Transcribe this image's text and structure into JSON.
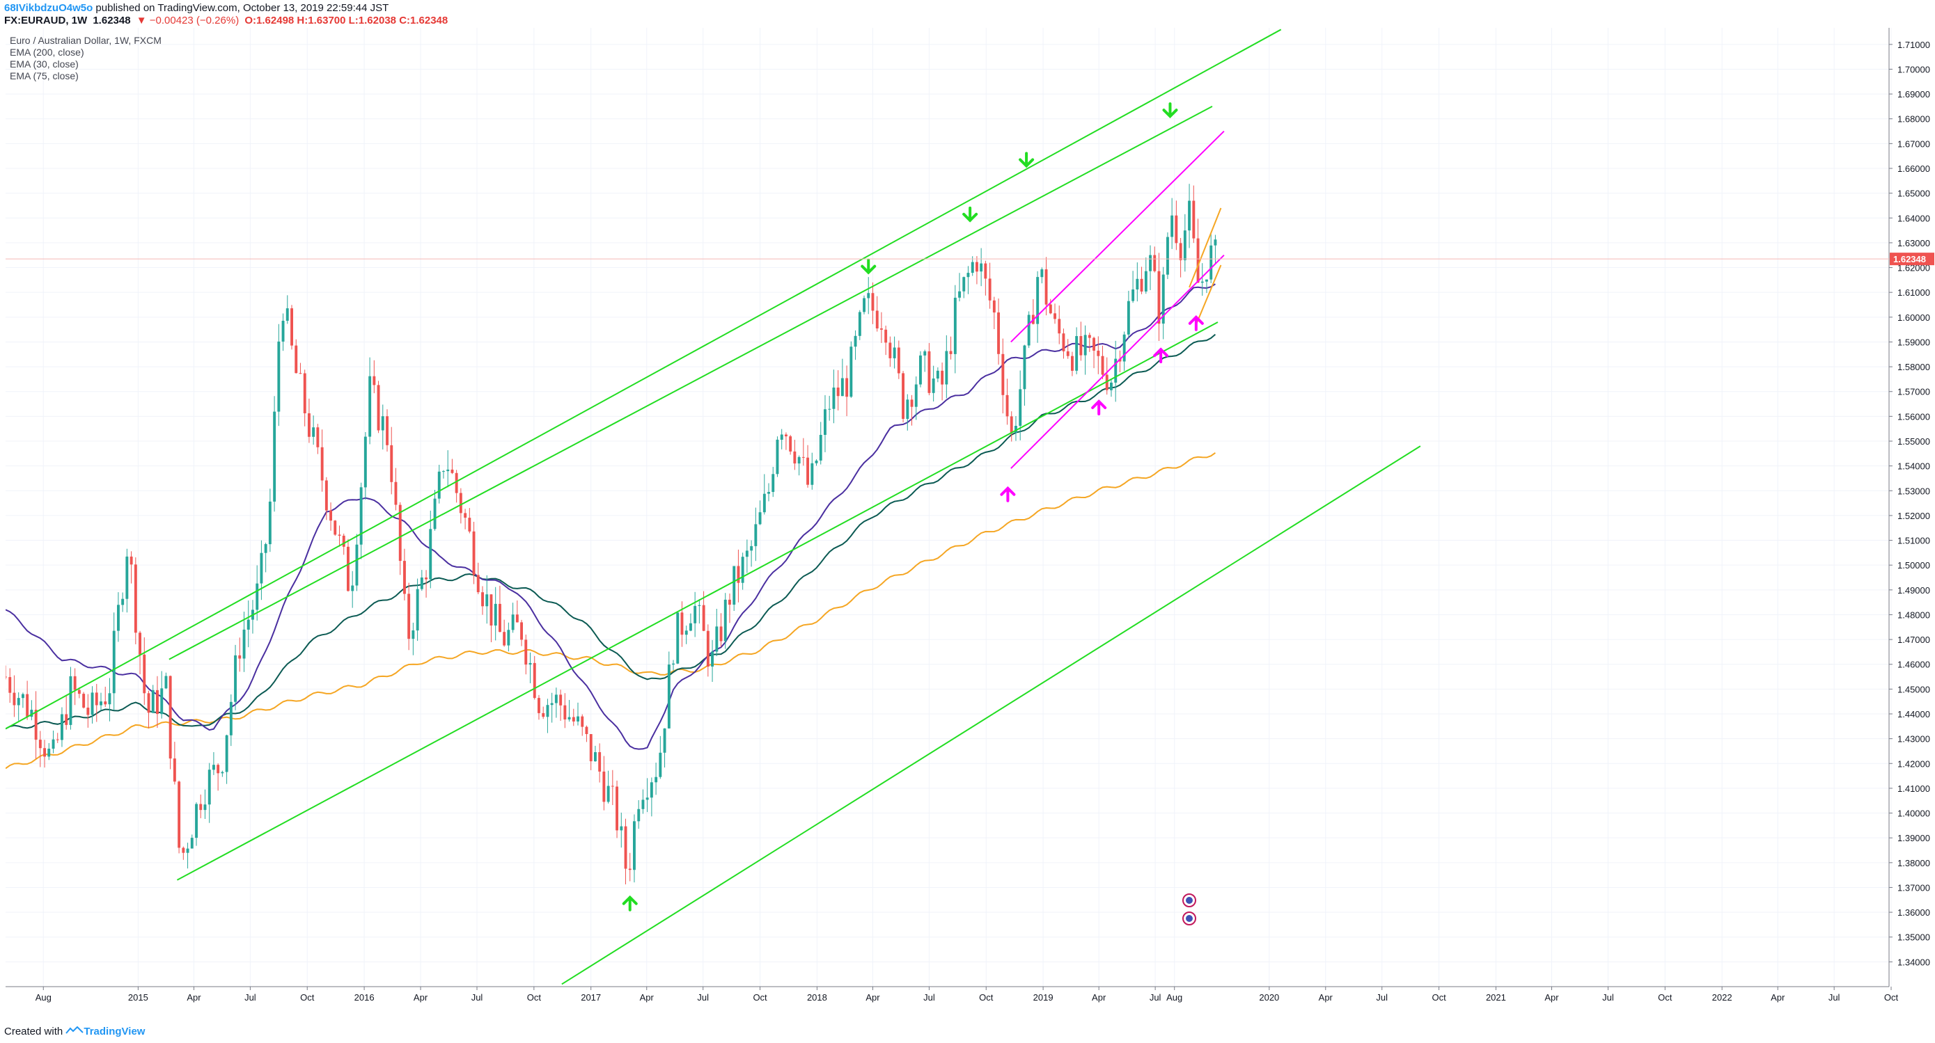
{
  "header": {
    "user": "68IVikbdzuO4w5o",
    "published_text": " published on TradingView.com, October 13, 2019 22:59:44 JST",
    "symbol": "FX:EURAUD, 1W",
    "last": "1.62348",
    "change": "▼ −0.00423 (−0.26%)",
    "ohlc": "O:1.62498 H:1.63700 L:1.62038 C:1.62348"
  },
  "legend": {
    "title": "Euro / Australian Dollar, 1W, FXCM",
    "ema200": "EMA (200, close)",
    "ema30": "EMA (30, close)",
    "ema75": "EMA (75, close)"
  },
  "footer": {
    "created": "Created with ",
    "brand": "TradingView"
  },
  "colors": {
    "up": "#26a69a",
    "down": "#ef5350",
    "green_line": "#22dd22",
    "magenta": "#ff00ff",
    "ema200": "#f5a623",
    "ema30": "#4a2fa0",
    "ema75": "#0b5a53",
    "price_tag": "#ef5350"
  },
  "chart_data": {
    "type": "candlestick",
    "title": "Euro / Australian Dollar, 1W, FXCM",
    "ylim": [
      1.33,
      1.715
    ],
    "y_ticks": [
      "1.34000",
      "1.35000",
      "1.36000",
      "1.37000",
      "1.38000",
      "1.39000",
      "1.40000",
      "1.41000",
      "1.42000",
      "1.43000",
      "1.44000",
      "1.45000",
      "1.46000",
      "1.47000",
      "1.48000",
      "1.49000",
      "1.50000",
      "1.51000",
      "1.52000",
      "1.53000",
      "1.54000",
      "1.55000",
      "1.56000",
      "1.57000",
      "1.58000",
      "1.59000",
      "1.60000",
      "1.61000",
      "1.62000",
      "1.63000",
      "1.64000",
      "1.65000",
      "1.66000",
      "1.67000",
      "1.68000",
      "1.69000",
      "1.70000",
      "1.71000"
    ],
    "x_ticks": [
      "Aug",
      "2015",
      "Apr",
      "Jul",
      "Oct",
      "2016",
      "Apr",
      "Jul",
      "Oct",
      "2017",
      "Apr",
      "Jul",
      "Oct",
      "2018",
      "Apr",
      "Jul",
      "Oct",
      "2019",
      "Apr",
      "Jul",
      "Aug",
      "2020",
      "Apr",
      "Jul",
      "Oct",
      "2021",
      "Apr",
      "Jul",
      "Oct",
      "2022",
      "Apr",
      "Jul",
      "Oct"
    ],
    "x_tick_dates": [
      "2014-08-01",
      "2015-01-01",
      "2015-04-01",
      "2015-07-01",
      "2015-10-01",
      "2016-01-01",
      "2016-04-01",
      "2016-07-01",
      "2016-10-01",
      "2017-01-01",
      "2017-04-01",
      "2017-07-01",
      "2017-10-01",
      "2018-01-01",
      "2018-04-01",
      "2018-07-01",
      "2018-10-01",
      "2019-01-01",
      "2019-04-01",
      "2019-07-01",
      "2019-08-01",
      "2020-01-01",
      "2020-04-01",
      "2020-07-01",
      "2020-10-01",
      "2021-01-01",
      "2021-04-01",
      "2021-07-01",
      "2021-10-01",
      "2022-01-01",
      "2022-04-01",
      "2022-07-01",
      "2022-10-01"
    ],
    "last_price": "1.62348",
    "price_path": [
      [
        "2014-06-01",
        1.455
      ],
      [
        "2014-07-15",
        1.44
      ],
      [
        "2014-08-15",
        1.42
      ],
      [
        "2014-09-15",
        1.45
      ],
      [
        "2014-10-15",
        1.44
      ],
      [
        "2014-11-15",
        1.45
      ],
      [
        "2014-12-15",
        1.51
      ],
      [
        "2015-01-15",
        1.44
      ],
      [
        "2015-02-15",
        1.45
      ],
      [
        "2015-03-10",
        1.38
      ],
      [
        "2015-04-15",
        1.41
      ],
      [
        "2015-05-15",
        1.42
      ],
      [
        "2015-06-15",
        1.47
      ],
      [
        "2015-07-15",
        1.49
      ],
      [
        "2015-08-01",
        1.52
      ],
      [
        "2015-08-20",
        1.61
      ],
      [
        "2015-09-10",
        1.58
      ],
      [
        "2015-10-10",
        1.55
      ],
      [
        "2015-11-10",
        1.52
      ],
      [
        "2015-12-10",
        1.49
      ],
      [
        "2016-01-10",
        1.57
      ],
      [
        "2016-02-10",
        1.55
      ],
      [
        "2016-03-10",
        1.47
      ],
      [
        "2016-04-10",
        1.5
      ],
      [
        "2016-05-10",
        1.545
      ],
      [
        "2016-06-10",
        1.52
      ],
      [
        "2016-07-10",
        1.49
      ],
      [
        "2016-08-10",
        1.47
      ],
      [
        "2016-09-10",
        1.475
      ],
      [
        "2016-10-10",
        1.445
      ],
      [
        "2016-11-10",
        1.445
      ],
      [
        "2016-12-10",
        1.435
      ],
      [
        "2017-01-10",
        1.42
      ],
      [
        "2017-02-10",
        1.4
      ],
      [
        "2017-03-01",
        1.375
      ],
      [
        "2017-03-20",
        1.41
      ],
      [
        "2017-04-20",
        1.42
      ],
      [
        "2017-05-15",
        1.47
      ],
      [
        "2017-06-15",
        1.485
      ],
      [
        "2017-07-15",
        1.46
      ],
      [
        "2017-08-15",
        1.49
      ],
      [
        "2017-09-15",
        1.505
      ],
      [
        "2017-10-15",
        1.53
      ],
      [
        "2017-11-01",
        1.56
      ],
      [
        "2017-12-01",
        1.545
      ],
      [
        "2017-12-20",
        1.53
      ],
      [
        "2018-01-20",
        1.565
      ],
      [
        "2018-02-20",
        1.575
      ],
      [
        "2018-03-20",
        1.605
      ],
      [
        "2018-04-20",
        1.6
      ],
      [
        "2018-05-20",
        1.565
      ],
      [
        "2018-06-20",
        1.58
      ],
      [
        "2018-07-20",
        1.57
      ],
      [
        "2018-08-15",
        1.605
      ],
      [
        "2018-09-15",
        1.625
      ],
      [
        "2018-10-15",
        1.6
      ],
      [
        "2018-11-10",
        1.55
      ],
      [
        "2018-12-01",
        1.58
      ],
      [
        "2018-12-25",
        1.62
      ],
      [
        "2019-01-20",
        1.595
      ],
      [
        "2019-02-20",
        1.585
      ],
      [
        "2019-03-20",
        1.585
      ],
      [
        "2019-04-20",
        1.575
      ],
      [
        "2019-05-20",
        1.605
      ],
      [
        "2019-06-20",
        1.625
      ],
      [
        "2019-07-10",
        1.6
      ],
      [
        "2019-07-25",
        1.645
      ],
      [
        "2019-08-10",
        1.63
      ],
      [
        "2019-08-25",
        1.64
      ],
      [
        "2019-09-10",
        1.61
      ],
      [
        "2019-09-25",
        1.625
      ],
      [
        "2019-10-10",
        1.6235
      ]
    ],
    "series": [
      {
        "name": "EMA (200, close)",
        "points": [
          [
            "2014-06-01",
            1.418
          ],
          [
            "2014-09-01",
            1.425
          ],
          [
            "2015-01-01",
            1.435
          ],
          [
            "2015-06-01",
            1.438
          ],
          [
            "2015-10-01",
            1.447
          ],
          [
            "2016-01-01",
            1.452
          ],
          [
            "2016-04-01",
            1.461
          ],
          [
            "2016-07-01",
            1.465
          ],
          [
            "2016-10-01",
            1.465
          ],
          [
            "2017-01-01",
            1.462
          ],
          [
            "2017-04-01",
            1.456
          ],
          [
            "2017-07-01",
            1.458
          ],
          [
            "2017-10-01",
            1.466
          ],
          [
            "2018-01-01",
            1.478
          ],
          [
            "2018-04-01",
            1.491
          ],
          [
            "2018-07-01",
            1.502
          ],
          [
            "2018-10-01",
            1.513
          ],
          [
            "2019-01-01",
            1.522
          ],
          [
            "2019-04-01",
            1.53
          ],
          [
            "2019-07-01",
            1.537
          ],
          [
            "2019-10-12",
            1.546
          ]
        ]
      },
      {
        "name": "EMA (75, close)",
        "points": [
          [
            "2014-06-01",
            1.434
          ],
          [
            "2014-09-01",
            1.437
          ],
          [
            "2015-01-01",
            1.444
          ],
          [
            "2015-04-01",
            1.434
          ],
          [
            "2015-07-01",
            1.443
          ],
          [
            "2015-10-01",
            1.468
          ],
          [
            "2016-01-01",
            1.482
          ],
          [
            "2016-04-01",
            1.493
          ],
          [
            "2016-07-01",
            1.496
          ],
          [
            "2016-10-01",
            1.489
          ],
          [
            "2016-12-15",
            1.478
          ],
          [
            "2017-02-01",
            1.466
          ],
          [
            "2017-04-01",
            1.453
          ],
          [
            "2017-06-01",
            1.458
          ],
          [
            "2017-08-01",
            1.465
          ],
          [
            "2017-10-01",
            1.478
          ],
          [
            "2018-01-01",
            1.5
          ],
          [
            "2018-04-01",
            1.52
          ],
          [
            "2018-07-01",
            1.533
          ],
          [
            "2018-10-01",
            1.545
          ],
          [
            "2019-01-01",
            1.56
          ],
          [
            "2019-04-01",
            1.569
          ],
          [
            "2019-07-01",
            1.581
          ],
          [
            "2019-10-12",
            1.594
          ]
        ]
      },
      {
        "name": "EMA (30, close)",
        "points": [
          [
            "2014-06-01",
            1.482
          ],
          [
            "2014-09-01",
            1.462
          ],
          [
            "2015-01-01",
            1.455
          ],
          [
            "2015-03-15",
            1.438
          ],
          [
            "2015-05-01",
            1.434
          ],
          [
            "2015-07-01",
            1.451
          ],
          [
            "2015-09-01",
            1.488
          ],
          [
            "2015-11-01",
            1.522
          ],
          [
            "2016-01-01",
            1.528
          ],
          [
            "2016-03-01",
            1.518
          ],
          [
            "2016-05-01",
            1.503
          ],
          [
            "2016-07-01",
            1.496
          ],
          [
            "2016-09-01",
            1.49
          ],
          [
            "2016-11-01",
            1.47
          ],
          [
            "2017-01-01",
            1.448
          ],
          [
            "2017-03-01",
            1.428
          ],
          [
            "2017-04-01",
            1.425
          ],
          [
            "2017-05-15",
            1.45
          ],
          [
            "2017-08-01",
            1.468
          ],
          [
            "2017-10-01",
            1.49
          ],
          [
            "2018-01-01",
            1.518
          ],
          [
            "2018-03-01",
            1.535
          ],
          [
            "2018-05-01",
            1.555
          ],
          [
            "2018-07-01",
            1.563
          ],
          [
            "2018-09-01",
            1.57
          ],
          [
            "2018-11-01",
            1.582
          ],
          [
            "2019-01-01",
            1.586
          ],
          [
            "2019-03-01",
            1.589
          ],
          [
            "2019-05-01",
            1.588
          ],
          [
            "2019-07-01",
            1.599
          ],
          [
            "2019-09-01",
            1.611
          ],
          [
            "2019-10-12",
            1.614
          ]
        ]
      }
    ],
    "trendlines": [
      {
        "color": "#22dd22",
        "points": [
          [
            "2014-06-01",
            1.434
          ],
          [
            "2020-01-20",
            1.716
          ]
        ]
      },
      {
        "color": "#22dd22",
        "points": [
          [
            "2015-02-20",
            1.462
          ],
          [
            "2019-10-01",
            1.685
          ]
        ]
      },
      {
        "color": "#22dd22",
        "points": [
          [
            "2015-03-05",
            1.373
          ],
          [
            "2019-10-10",
            1.598
          ]
        ]
      },
      {
        "color": "#22dd22",
        "points": [
          [
            "2016-11-15",
            1.331
          ],
          [
            "2020-09-01",
            1.548
          ]
        ]
      },
      {
        "color": "#ff00ff",
        "points": [
          [
            "2018-11-10",
            1.539
          ],
          [
            "2019-10-20",
            1.625
          ]
        ]
      },
      {
        "color": "#ff00ff",
        "points": [
          [
            "2018-11-10",
            1.59
          ],
          [
            "2019-10-20",
            1.675
          ]
        ]
      },
      {
        "color": "#f5a623",
        "points": [
          [
            "2019-08-25",
            1.612
          ],
          [
            "2019-10-15",
            1.644
          ]
        ]
      },
      {
        "color": "#f5a623",
        "points": [
          [
            "2019-09-05",
            1.597
          ],
          [
            "2019-10-15",
            1.621
          ]
        ]
      }
    ],
    "markers": [
      {
        "dir": "down",
        "color": "#22dd22",
        "date": "2018-03-25",
        "price": 1.618
      },
      {
        "dir": "down",
        "color": "#22dd22",
        "date": "2018-09-05",
        "price": 1.639
      },
      {
        "dir": "down",
        "color": "#22dd22",
        "date": "2018-12-05",
        "price": 1.661
      },
      {
        "dir": "down",
        "color": "#22dd22",
        "date": "2019-07-25",
        "price": 1.681
      },
      {
        "dir": "up",
        "color": "#22dd22",
        "date": "2017-03-05",
        "price": 1.366
      },
      {
        "dir": "up",
        "color": "#ff00ff",
        "date": "2018-11-05",
        "price": 1.531
      },
      {
        "dir": "up",
        "color": "#ff00ff",
        "date": "2019-04-01",
        "price": 1.566
      },
      {
        "dir": "up",
        "color": "#ff00ff",
        "date": "2019-07-10",
        "price": 1.587
      },
      {
        "dir": "up",
        "color": "#ff00ff",
        "date": "2019-09-05",
        "price": 1.6
      }
    ]
  }
}
